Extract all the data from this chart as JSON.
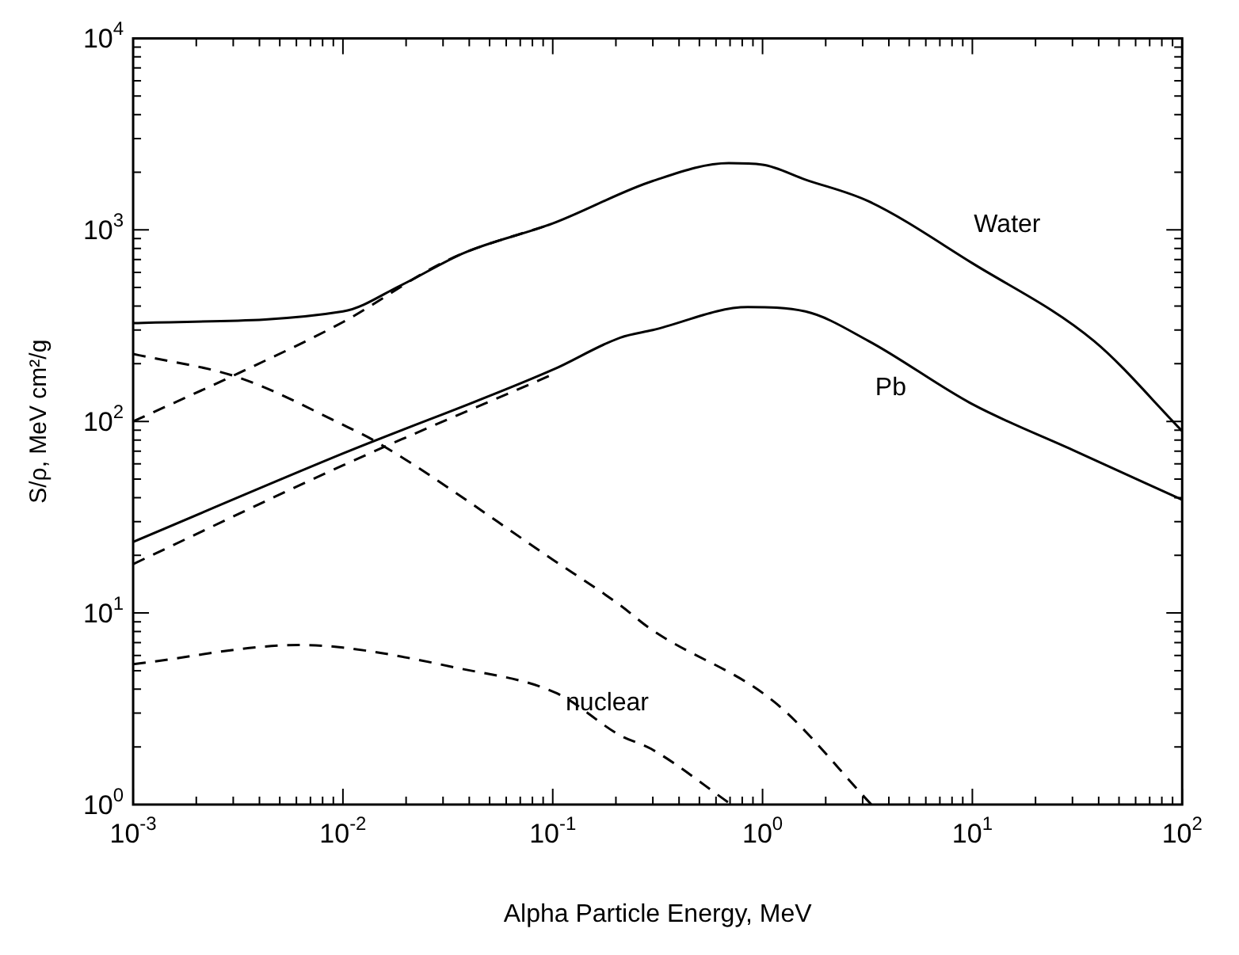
{
  "chart_data": {
    "type": "line",
    "xlabel": "Alpha Particle Energy, MeV",
    "ylabel": "S/ρ, MeV cm²/g",
    "log": "xy",
    "grid": false,
    "legend": false,
    "marker": "none",
    "xlim": [
      0.001,
      100
    ],
    "ylim": [
      1,
      10000
    ],
    "xticks": [
      {
        "value": 0.001,
        "label": "10$^{-3}$"
      },
      {
        "value": 0.002,
        "label": null
      },
      {
        "value": 0.003,
        "label": null
      },
      {
        "value": 0.004,
        "label": null
      },
      {
        "value": 0.005,
        "label": null
      },
      {
        "value": 0.006,
        "label": null
      },
      {
        "value": 0.007,
        "label": null
      },
      {
        "value": 0.008,
        "label": null
      },
      {
        "value": 0.009,
        "label": null
      },
      {
        "value": 0.01,
        "label": "10$^{-2}$"
      },
      {
        "value": 0.02,
        "label": null
      },
      {
        "value": 0.03,
        "label": null
      },
      {
        "value": 0.04,
        "label": null
      },
      {
        "value": 0.05,
        "label": null
      },
      {
        "value": 0.06,
        "label": null
      },
      {
        "value": 0.07,
        "label": null
      },
      {
        "value": 0.08,
        "label": null
      },
      {
        "value": 0.09,
        "label": null
      },
      {
        "value": 0.1,
        "label": "10$^{-1}$"
      },
      {
        "value": 0.2,
        "label": null
      },
      {
        "value": 0.3,
        "label": null
      },
      {
        "value": 0.4,
        "label": null
      },
      {
        "value": 0.5,
        "label": null
      },
      {
        "value": 0.6,
        "label": null
      },
      {
        "value": 0.7,
        "label": null
      },
      {
        "value": 0.8,
        "label": null
      },
      {
        "value": 0.9,
        "label": null
      },
      {
        "value": 1,
        "label": "10$^{0}$"
      },
      {
        "value": 2,
        "label": null
      },
      {
        "value": 3,
        "label": null
      },
      {
        "value": 4,
        "label": null
      },
      {
        "value": 5,
        "label": null
      },
      {
        "value": 6,
        "label": null
      },
      {
        "value": 7,
        "label": null
      },
      {
        "value": 8,
        "label": null
      },
      {
        "value": 9,
        "label": null
      },
      {
        "value": 10,
        "label": "10$^{1}$"
      },
      {
        "value": 20,
        "label": null
      },
      {
        "value": 30,
        "label": null
      },
      {
        "value": 40,
        "label": null
      },
      {
        "value": 50,
        "label": null
      },
      {
        "value": 60,
        "label": null
      },
      {
        "value": 70,
        "label": null
      },
      {
        "value": 80,
        "label": null
      },
      {
        "value": 90,
        "label": null
      },
      {
        "value": 100,
        "label": "10$^{2}$"
      }
    ],
    "yticks": [
      {
        "value": 1,
        "label": "10$^{0}$"
      },
      {
        "value": 2,
        "label": null
      },
      {
        "value": 3,
        "label": null
      },
      {
        "value": 4,
        "label": null
      },
      {
        "value": 5,
        "label": null
      },
      {
        "value": 6,
        "label": null
      },
      {
        "value": 7,
        "label": null
      },
      {
        "value": 8,
        "label": null
      },
      {
        "value": 9,
        "label": null
      },
      {
        "value": 10,
        "label": "10$^{1}$"
      },
      {
        "value": 20,
        "label": null
      },
      {
        "value": 30,
        "label": null
      },
      {
        "value": 40,
        "label": null
      },
      {
        "value": 50,
        "label": null
      },
      {
        "value": 60,
        "label": null
      },
      {
        "value": 70,
        "label": null
      },
      {
        "value": 80,
        "label": null
      },
      {
        "value": 90,
        "label": null
      },
      {
        "value": 100,
        "label": "10$^{2}$"
      },
      {
        "value": 200,
        "label": null
      },
      {
        "value": 300,
        "label": null
      },
      {
        "value": 400,
        "label": null
      },
      {
        "value": 500,
        "label": null
      },
      {
        "value": 600,
        "label": null
      },
      {
        "value": 700,
        "label": null
      },
      {
        "value": 800,
        "label": null
      },
      {
        "value": 900,
        "label": null
      },
      {
        "value": 1000,
        "label": "10$^{3}$"
      },
      {
        "value": 2000,
        "label": null
      },
      {
        "value": 3000,
        "label": null
      },
      {
        "value": 4000,
        "label": null
      },
      {
        "value": 5000,
        "label": null
      },
      {
        "value": 6000,
        "label": null
      },
      {
        "value": 7000,
        "label": null
      },
      {
        "value": 8000,
        "label": null
      },
      {
        "value": 9000,
        "label": null
      },
      {
        "value": 10000,
        "label": "10$^{4}$"
      }
    ],
    "series": [
      {
        "name": "Water",
        "color": "#000000",
        "line_style": "solid",
        "x": [
          0.001,
          0.01,
          0.019,
          0.038,
          0.1,
          0.3,
          0.69,
          1,
          1.6,
          3.2,
          10,
          38,
          100
        ],
        "values": [
          326,
          375,
          515,
          760,
          1080,
          1800,
          2230,
          2190,
          1830,
          1410,
          670,
          263,
          89
        ]
      },
      {
        "color": "#000000",
        "line_style": "dashed",
        "x": [
          0.001,
          0.00316,
          0.01,
          0.032,
          0.1
        ],
        "values": [
          100,
          178,
          330,
          700,
          1080
        ]
      },
      {
        "color": "#000000",
        "line_style": "dashed",
        "x": [
          0.001,
          0.00316,
          0.01,
          0.0148,
          0.1,
          0.209,
          0.295,
          1.15,
          3.3
        ],
        "values": [
          225,
          170,
          96,
          77,
          19,
          11,
          8.2,
          3.4,
          1
        ]
      },
      {
        "name": "Pb",
        "color": "#000000",
        "line_style": "solid",
        "x": [
          0.001,
          0.01,
          0.1,
          0.21,
          0.3,
          0.85,
          1.6,
          3.2,
          10,
          30,
          100
        ],
        "values": [
          23.5,
          68,
          186,
          274,
          300,
          395,
          375,
          263,
          123,
          71,
          39
        ]
      },
      {
        "color": "#000000",
        "line_style": "dashed",
        "x": [
          0.001,
          0.01,
          0.1
        ],
        "values": [
          18,
          59,
          176
        ]
      },
      {
        "name": "nuclear",
        "color": "#000000",
        "line_style": "dashed",
        "x": [
          0.001,
          0.0062,
          0.01,
          0.034,
          0.105,
          0.209,
          0.295,
          0.71
        ],
        "values": [
          5.4,
          6.8,
          6.6,
          5.2,
          3.8,
          2.3,
          1.95,
          1
        ]
      }
    ]
  }
}
